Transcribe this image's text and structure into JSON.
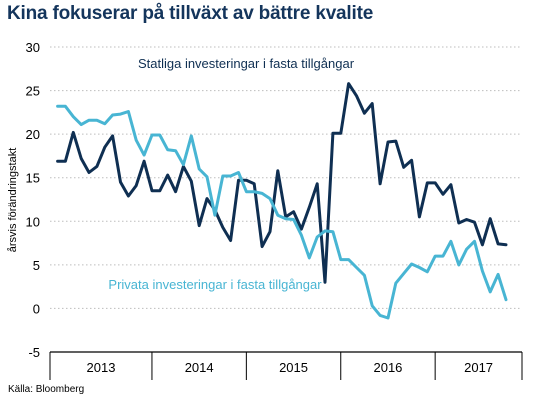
{
  "title": "Kina fokuserar på tillväxt av bättre kvalite",
  "source": "Källa: Bloomberg",
  "colors": {
    "title": "#14355c",
    "state": "#0f2f52",
    "private": "#48b5d3",
    "grid": "#bdbdbd"
  },
  "chart_data": {
    "type": "line",
    "title": "Kina fokuserar på tillväxt av bättre kvalite",
    "ylabel": "årsvis förändringstakt",
    "xlabel": "",
    "ylim": [
      -5,
      30
    ],
    "xlim": [
      2012.92,
      2017.92
    ],
    "yticks": [
      30,
      25,
      20,
      15,
      10,
      5,
      0,
      -5
    ],
    "year_labels": [
      "2013",
      "2014",
      "2015",
      "2016",
      "2017"
    ],
    "grid": true,
    "series": [
      {
        "name": "Statliga investeringar i fasta tillgångar",
        "color": "#0f2f52",
        "x": [
          2013.0,
          2013.083,
          2013.167,
          2013.25,
          2013.333,
          2013.417,
          2013.5,
          2013.583,
          2013.667,
          2013.75,
          2013.833,
          2013.917,
          2014.0,
          2014.083,
          2014.167,
          2014.25,
          2014.333,
          2014.417,
          2014.5,
          2014.583,
          2014.667,
          2014.75,
          2014.833,
          2014.917,
          2015.0,
          2015.083,
          2015.167,
          2015.25,
          2015.333,
          2015.417,
          2015.5,
          2015.583,
          2015.667,
          2015.75,
          2015.833,
          2015.917,
          2016.0,
          2016.083,
          2016.167,
          2016.25,
          2016.333,
          2016.417,
          2016.5,
          2016.583,
          2016.667,
          2016.75,
          2016.833,
          2016.917,
          2017.0,
          2017.083,
          2017.167,
          2017.25,
          2017.333,
          2017.417,
          2017.5,
          2017.583,
          2017.667,
          2017.75
        ],
        "y": [
          16.9,
          16.9,
          20.2,
          17.2,
          15.6,
          16.3,
          18.5,
          19.8,
          14.5,
          12.9,
          14.1,
          16.9,
          13.5,
          13.5,
          15.3,
          13.4,
          16.3,
          14.6,
          9.5,
          12.6,
          11.3,
          9.3,
          7.8,
          14.7,
          14.7,
          14.3,
          7.1,
          8.8,
          15.8,
          10.5,
          11.1,
          9.1,
          11.6,
          14.3,
          3.0,
          20.1,
          20.1,
          25.8,
          24.4,
          22.4,
          23.5,
          14.3,
          19.1,
          19.2,
          16.2,
          17.0,
          10.5,
          14.4,
          14.4,
          13.1,
          14.2,
          9.8,
          10.2,
          9.9,
          7.3,
          10.3,
          7.4,
          7.3
        ]
      },
      {
        "name": "Privata investeringar i fasta tillgångar",
        "color": "#48b5d3",
        "x": [
          2013.0,
          2013.083,
          2013.167,
          2013.25,
          2013.333,
          2013.417,
          2013.5,
          2013.583,
          2013.667,
          2013.75,
          2013.833,
          2013.917,
          2014.0,
          2014.083,
          2014.167,
          2014.25,
          2014.333,
          2014.417,
          2014.5,
          2014.583,
          2014.667,
          2014.75,
          2014.833,
          2014.917,
          2015.0,
          2015.083,
          2015.167,
          2015.25,
          2015.333,
          2015.417,
          2015.5,
          2015.583,
          2015.667,
          2015.75,
          2015.833,
          2015.917,
          2016.0,
          2016.083,
          2016.167,
          2016.25,
          2016.333,
          2016.417,
          2016.5,
          2016.583,
          2016.667,
          2016.75,
          2016.833,
          2016.917,
          2017.0,
          2017.083,
          2017.167,
          2017.25,
          2017.333,
          2017.417,
          2017.5,
          2017.583,
          2017.667,
          2017.75
        ],
        "y": [
          23.2,
          23.2,
          22.0,
          21.1,
          21.6,
          21.6,
          21.2,
          22.2,
          22.3,
          22.6,
          19.3,
          17.6,
          19.9,
          19.9,
          18.2,
          18.1,
          16.5,
          19.8,
          16.0,
          15.1,
          10.7,
          15.2,
          15.2,
          15.6,
          13.4,
          13.4,
          13.2,
          12.6,
          10.7,
          10.3,
          10.2,
          8.4,
          5.8,
          8.2,
          8.9,
          8.8,
          5.6,
          5.6,
          4.7,
          3.8,
          0.3,
          -0.8,
          -1.1,
          2.9,
          4.0,
          5.1,
          4.7,
          4.2,
          6.0,
          6.0,
          7.7,
          5.0,
          6.8,
          7.7,
          4.3,
          1.9,
          3.9,
          1.0
        ]
      }
    ],
    "annotations": [
      {
        "text": "Statliga investeringar i fasta tillgångar",
        "series": 0
      },
      {
        "text": "Privata investeringar i fasta tillgångar",
        "series": 1
      }
    ]
  }
}
